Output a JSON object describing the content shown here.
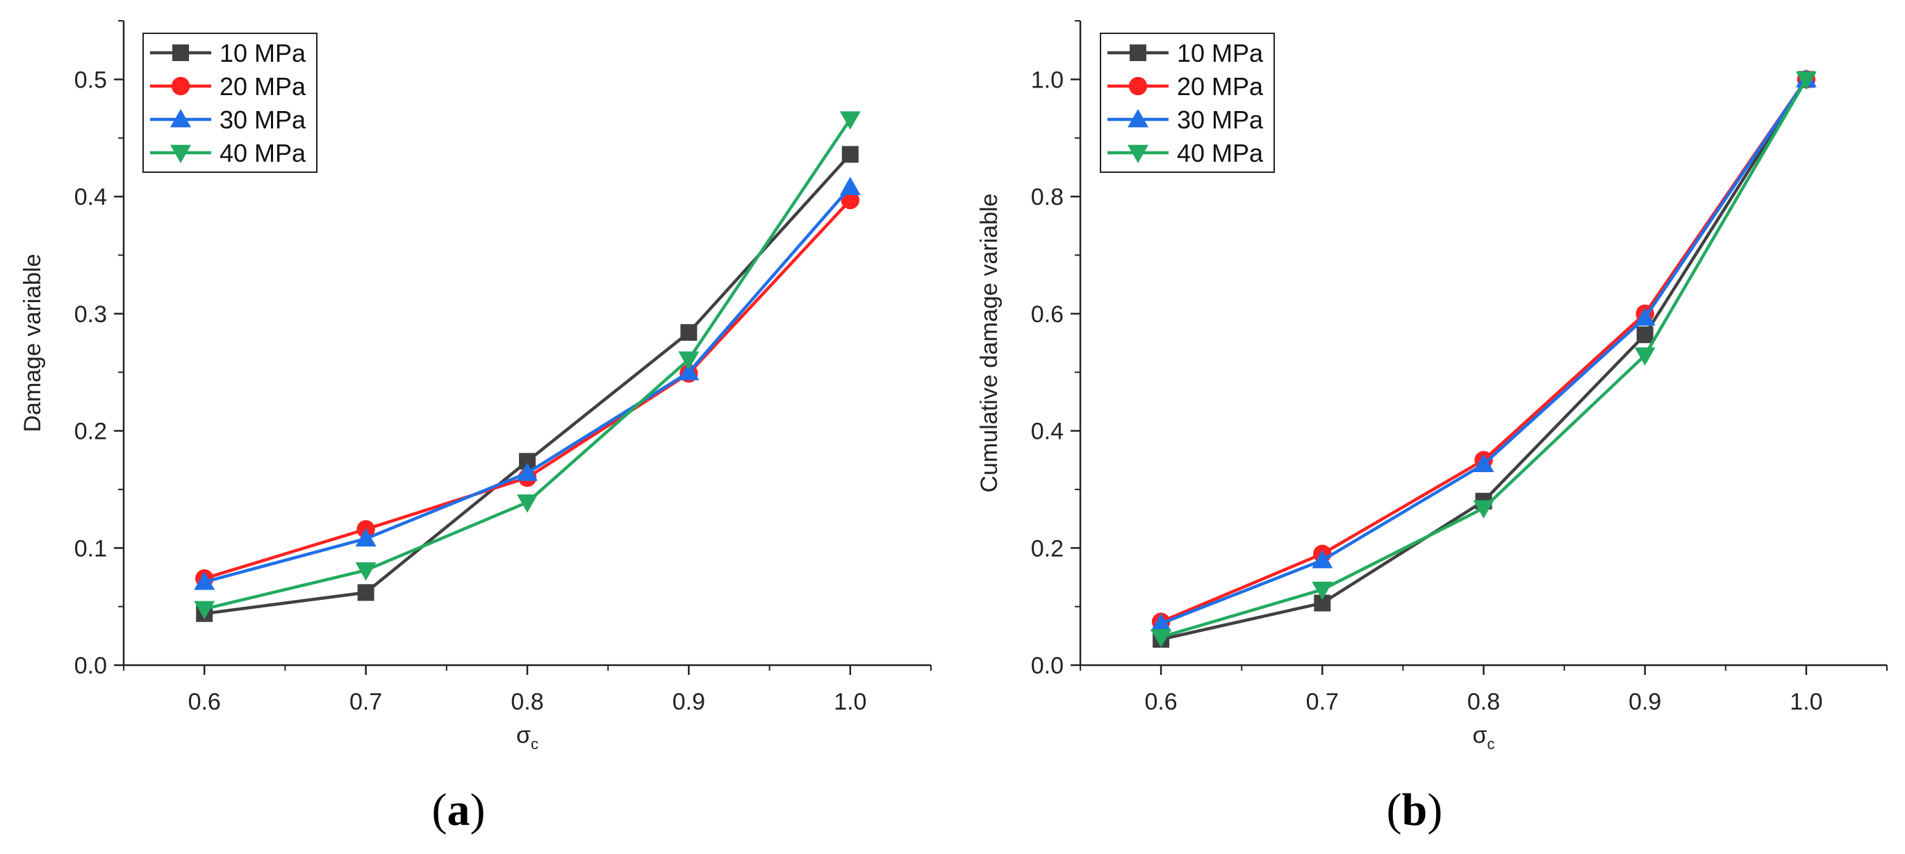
{
  "chart_data": [
    {
      "type": "line",
      "panel_label": "a",
      "title": "",
      "xlabel": "σ",
      "xlabel_sub": "c",
      "ylabel": "Damage variable",
      "xlim": [
        0.55,
        1.05
      ],
      "ylim": [
        0.0,
        0.55
      ],
      "x_ticks": [
        "0.6",
        "0.7",
        "0.8",
        "0.9",
        "1.0"
      ],
      "y_ticks": [
        "0.0",
        "0.1",
        "0.2",
        "0.3",
        "0.4",
        "0.5"
      ],
      "legend_position": "top-left",
      "x": [
        0.6,
        0.7,
        0.8,
        0.9,
        1.0
      ],
      "series": [
        {
          "name": "10 MPa",
          "color": "#404040",
          "marker": "square",
          "values": [
            0.044,
            0.062,
            0.174,
            0.284,
            0.436
          ]
        },
        {
          "name": "20 MPa",
          "color": "#ff2020",
          "marker": "circle",
          "values": [
            0.074,
            0.116,
            0.16,
            0.249,
            0.397
          ]
        },
        {
          "name": "30 MPa",
          "color": "#1f6fe8",
          "marker": "triangle-up",
          "values": [
            0.071,
            0.108,
            0.164,
            0.25,
            0.408
          ]
        },
        {
          "name": "40 MPa",
          "color": "#22aa60",
          "marker": "triangle-down",
          "values": [
            0.048,
            0.081,
            0.139,
            0.261,
            0.466
          ]
        }
      ]
    },
    {
      "type": "line",
      "panel_label": "b",
      "title": "",
      "xlabel": "σ",
      "xlabel_sub": "c",
      "ylabel": "Cumulative damage variable",
      "xlim": [
        0.55,
        1.05
      ],
      "ylim": [
        0.0,
        1.1
      ],
      "x_ticks": [
        "0.6",
        "0.7",
        "0.8",
        "0.9",
        "1.0"
      ],
      "y_ticks": [
        "0.0",
        "0.2",
        "0.4",
        "0.6",
        "0.8",
        "1.0"
      ],
      "legend_position": "top-left",
      "x": [
        0.6,
        0.7,
        0.8,
        0.9,
        1.0
      ],
      "series": [
        {
          "name": "10 MPa",
          "color": "#404040",
          "marker": "square",
          "values": [
            0.044,
            0.106,
            0.28,
            0.564,
            1.0
          ]
        },
        {
          "name": "20 MPa",
          "color": "#ff2020",
          "marker": "circle",
          "values": [
            0.074,
            0.19,
            0.35,
            0.6,
            1.0
          ]
        },
        {
          "name": "30 MPa",
          "color": "#1f6fe8",
          "marker": "triangle-up",
          "values": [
            0.071,
            0.179,
            0.343,
            0.593,
            1.0
          ]
        },
        {
          "name": "40 MPa",
          "color": "#22aa60",
          "marker": "triangle-down",
          "values": [
            0.048,
            0.129,
            0.268,
            0.529,
            1.0
          ]
        }
      ]
    }
  ]
}
